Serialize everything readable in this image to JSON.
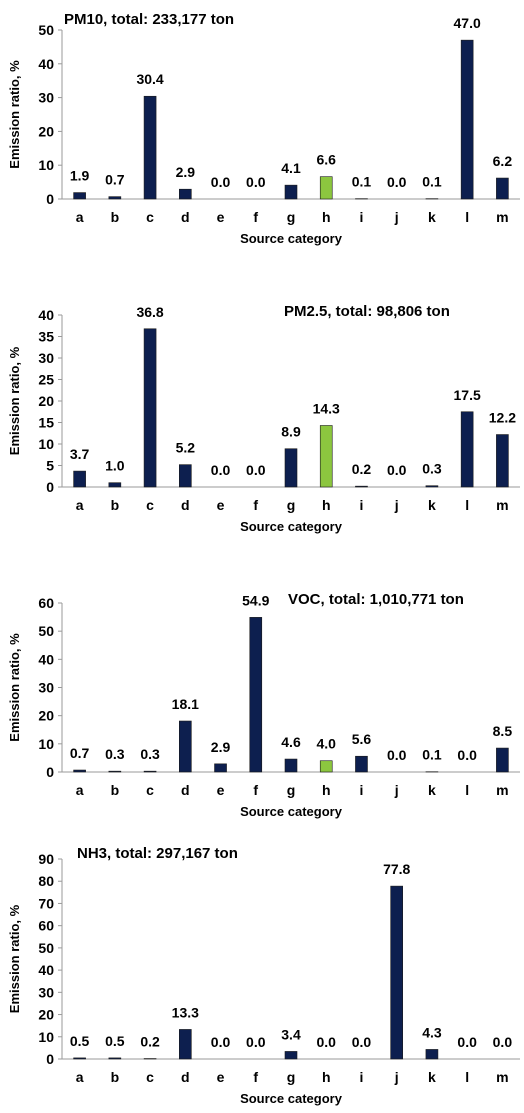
{
  "chart_data": [
    {
      "type": "bar",
      "title": "PM10, total: 233,177 ton",
      "xlabel": "Source category",
      "ylabel": "Emission ratio, %",
      "categories": [
        "a",
        "b",
        "c",
        "d",
        "e",
        "f",
        "g",
        "h",
        "i",
        "j",
        "k",
        "l",
        "m"
      ],
      "values": [
        1.9,
        0.7,
        30.4,
        2.9,
        0.0,
        0.0,
        4.1,
        6.6,
        0.1,
        0.0,
        0.1,
        47.0,
        6.2
      ],
      "value_labels": [
        "1.9",
        "0.7",
        "30.4",
        "2.9",
        "0.0",
        "0.0",
        "4.1",
        "6.6",
        "0.1",
        "0.0",
        "0.1",
        "47.0",
        "6.2"
      ],
      "ylim": [
        0,
        50
      ],
      "yticks": [
        0,
        10,
        20,
        30,
        40,
        50
      ],
      "highlight_category": "h",
      "grid": false,
      "legend": "none"
    },
    {
      "type": "bar",
      "title": "PM2.5, total: 98,806 ton",
      "xlabel": "Source category",
      "ylabel": "Emission ratio, %",
      "categories": [
        "a",
        "b",
        "c",
        "d",
        "e",
        "f",
        "g",
        "h",
        "i",
        "j",
        "k",
        "l",
        "m"
      ],
      "values": [
        3.7,
        1.0,
        36.8,
        5.2,
        0.0,
        0.0,
        8.9,
        14.3,
        0.2,
        0.0,
        0.3,
        17.5,
        12.2
      ],
      "value_labels": [
        "3.7",
        "1.0",
        "36.8",
        "5.2",
        "0.0",
        "0.0",
        "8.9",
        "14.3",
        "0.2",
        "0.0",
        "0.3",
        "17.5",
        "12.2"
      ],
      "ylim": [
        0,
        40
      ],
      "yticks": [
        0,
        5,
        10,
        15,
        20,
        25,
        30,
        35,
        40
      ],
      "highlight_category": "h",
      "grid": false,
      "legend": "none"
    },
    {
      "type": "bar",
      "title": "VOC, total: 1,010,771 ton",
      "xlabel": "Source category",
      "ylabel": "Emission ratio, %",
      "categories": [
        "a",
        "b",
        "c",
        "d",
        "e",
        "f",
        "g",
        "h",
        "i",
        "j",
        "k",
        "l",
        "m"
      ],
      "values": [
        0.7,
        0.3,
        0.3,
        18.1,
        2.9,
        54.9,
        4.6,
        4.0,
        5.6,
        0.0,
        0.1,
        0.0,
        8.5
      ],
      "value_labels": [
        "0.7",
        "0.3",
        "0.3",
        "18.1",
        "2.9",
        "54.9",
        "4.6",
        "4.0",
        "5.6",
        "0.0",
        "0.1",
        "0.0",
        "8.5"
      ],
      "ylim": [
        0,
        60
      ],
      "yticks": [
        0,
        10,
        20,
        30,
        40,
        50,
        60
      ],
      "highlight_category": "h",
      "grid": false,
      "legend": "none"
    },
    {
      "type": "bar",
      "title": "NH3, total: 297,167 ton",
      "xlabel": "Source category",
      "ylabel": "Emission ratio, %",
      "categories": [
        "a",
        "b",
        "c",
        "d",
        "e",
        "f",
        "g",
        "h",
        "i",
        "j",
        "k",
        "l",
        "m"
      ],
      "values": [
        0.5,
        0.5,
        0.2,
        13.3,
        0.0,
        0.0,
        3.4,
        0.0,
        0.0,
        77.8,
        4.3,
        0.0,
        0.0
      ],
      "value_labels": [
        "0.5",
        "0.5",
        "0.2",
        "13.3",
        "0.0",
        "0.0",
        "3.4",
        "0.0",
        "0.0",
        "77.8",
        "4.3",
        "0.0",
        "0.0"
      ],
      "ylim": [
        0,
        90
      ],
      "yticks": [
        0,
        10,
        20,
        30,
        40,
        50,
        60,
        70,
        80,
        90
      ],
      "highlight_category": "h",
      "grid": false,
      "legend": "none"
    }
  ],
  "colors": {
    "bar": "#0d1f4f",
    "highlight": "#8cc63f",
    "axis": "#9a9a9a",
    "text": "#000000"
  }
}
